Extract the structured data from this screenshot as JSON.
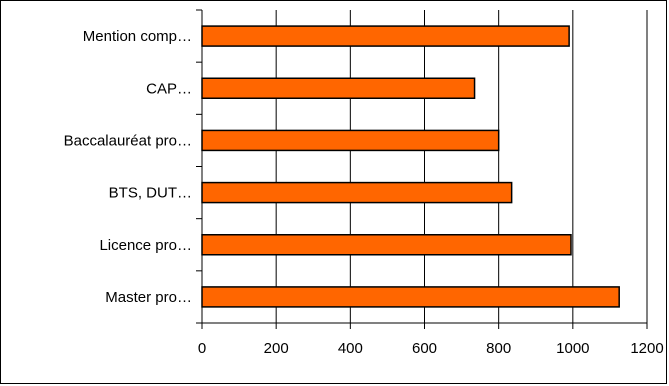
{
  "chart_data": {
    "type": "bar",
    "orientation": "horizontal",
    "categories": [
      "Mention comp…",
      "CAP…",
      "Baccalauréat pro…",
      "BTS, DUT…",
      "Licence pro…",
      "Master pro…"
    ],
    "values": [
      990,
      735,
      800,
      835,
      995,
      1125
    ],
    "xlim": [
      0,
      1200
    ],
    "x_ticks": [
      "0",
      "200",
      "400",
      "600",
      "800",
      "1000",
      "1200"
    ],
    "title": "",
    "xlabel": "",
    "ylabel": "",
    "grid": "vertical gridlines at each x tick",
    "legend": "none",
    "colors": {
      "bar_fill": "#FF6600",
      "bar_stroke": "#000000",
      "gridline": "#000000",
      "background": "#FFFFFF"
    }
  }
}
